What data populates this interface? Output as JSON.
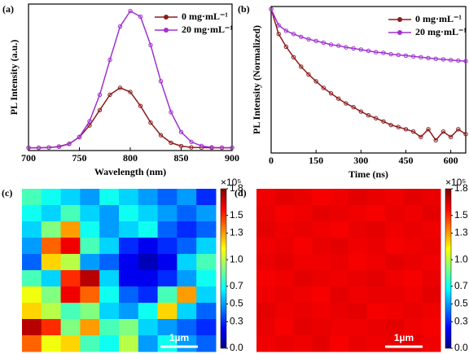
{
  "chart_data": [
    {
      "type": "line",
      "panel_label": "(a)",
      "x_label": "Wavelength (nm)",
      "y_label": "PL Intensity (a.u.)",
      "x": [
        700,
        710,
        720,
        730,
        740,
        750,
        760,
        770,
        780,
        790,
        800,
        810,
        820,
        830,
        840,
        850,
        860,
        870,
        880,
        890,
        900
      ],
      "series": [
        {
          "name": "0 mg·mL⁻¹",
          "color": "#8b1c1c",
          "values": [
            0.02,
            0.02,
            0.022,
            0.029,
            0.049,
            0.096,
            0.18,
            0.29,
            0.4,
            0.45,
            0.42,
            0.32,
            0.2,
            0.11,
            0.056,
            0.032,
            0.023,
            0.021,
            0.02,
            0.02,
            0.02
          ]
        },
        {
          "name": "20 mg·mL⁻¹",
          "color": "#a030d0",
          "values": [
            0.02,
            0.02,
            0.022,
            0.027,
            0.047,
            0.098,
            0.21,
            0.4,
            0.65,
            0.89,
            1.0,
            0.96,
            0.756,
            0.497,
            0.275,
            0.133,
            0.062,
            0.033,
            0.023,
            0.021,
            0.02
          ]
        }
      ],
      "xlim": [
        700,
        900
      ],
      "xticks": [
        700,
        750,
        800,
        850,
        900
      ],
      "ylim": [
        0,
        1.05
      ],
      "legend": "upper-right"
    },
    {
      "type": "line",
      "panel_label": "(b)",
      "x_label": "Time (ns)",
      "y_label": "PL Intensity (Normalized)",
      "log_y": true,
      "x": [
        0,
        25,
        50,
        75,
        100,
        125,
        150,
        175,
        200,
        225,
        250,
        275,
        300,
        325,
        350,
        375,
        400,
        425,
        450,
        475,
        500,
        525,
        550,
        575,
        600,
        625,
        650
      ],
      "series": [
        {
          "name": "0 mg·mL⁻¹",
          "color": "#8b1c1c",
          "values": [
            1,
            0.4,
            0.25,
            0.17,
            0.12,
            0.09,
            0.07,
            0.055,
            0.045,
            0.037,
            0.031,
            0.027,
            0.023,
            0.02,
            0.018,
            0.016,
            0.014,
            0.013,
            0.012,
            0.011,
            0.009,
            0.012,
            0.008,
            0.011,
            0.009,
            0.012,
            0.01
          ]
        },
        {
          "name": "20 mg·mL⁻¹",
          "color": "#a030d0",
          "values": [
            1,
            0.55,
            0.45,
            0.4,
            0.36,
            0.33,
            0.31,
            0.29,
            0.27,
            0.26,
            0.245,
            0.235,
            0.225,
            0.215,
            0.205,
            0.2,
            0.19,
            0.185,
            0.18,
            0.175,
            0.17,
            0.165,
            0.16,
            0.157,
            0.153,
            0.15,
            0.147
          ]
        }
      ],
      "xlim": [
        0,
        650
      ],
      "xticks": [
        0,
        150,
        300,
        450,
        600
      ],
      "ylim": [
        0.005,
        1.1
      ],
      "legend": "upper-right"
    },
    {
      "type": "heatmap",
      "panel_label": "(c)",
      "colormap": "jet",
      "colorbar_label": "×10⁵",
      "scale_bar": "1µm",
      "zlim": [
        0,
        1.8
      ],
      "zticks": [
        {
          "value": 0,
          "label": "0.0"
        },
        0.3,
        0.5,
        0.7,
        {
          "value": 1,
          "label": "1.0"
        },
        1.3,
        1.5,
        1.8
      ],
      "z": [
        [
          0.8,
          0.7,
          0.6,
          0.5,
          0.7,
          0.6,
          0.5,
          0.4,
          0.5,
          0.3
        ],
        [
          0.7,
          0.6,
          0.8,
          0.6,
          0.5,
          0.7,
          0.6,
          0.5,
          0.4,
          0.5
        ],
        [
          0.6,
          0.9,
          1.3,
          0.7,
          0.5,
          0.6,
          0.7,
          0.4,
          0.3,
          0.4
        ],
        [
          0.5,
          1.4,
          1.6,
          0.8,
          0.6,
          0.3,
          0.2,
          0.3,
          0.4,
          0.6
        ],
        [
          0.4,
          1.2,
          1.0,
          0.5,
          0.4,
          0.2,
          0.1,
          0.2,
          0.6,
          0.8
        ],
        [
          0.8,
          0.6,
          1.5,
          1.7,
          0.6,
          0.2,
          0.2,
          0.3,
          0.5,
          0.7
        ],
        [
          1.1,
          0.9,
          1.6,
          1.4,
          0.7,
          0.4,
          0.3,
          0.8,
          1.3,
          0.6
        ],
        [
          1.2,
          1.0,
          0.8,
          0.9,
          0.6,
          0.5,
          0.7,
          1.2,
          0.6,
          0.4
        ],
        [
          1.7,
          1.5,
          0.9,
          1.3,
          0.8,
          0.9,
          0.6,
          0.5,
          0.4,
          0.3
        ],
        [
          1.4,
          1.1,
          1.2,
          0.8,
          0.7,
          1.0,
          0.5,
          0.7,
          0.5,
          0.4
        ]
      ]
    },
    {
      "type": "heatmap",
      "panel_label": "(d)",
      "colormap": "jet",
      "colorbar_label": "×10⁵",
      "scale_bar": "1µm",
      "zlim": [
        0,
        1.8
      ],
      "zticks": [
        {
          "value": 0,
          "label": "0.0"
        },
        0.3,
        0.5,
        0.7,
        {
          "value": 1,
          "label": "1.0"
        },
        1.3,
        1.5,
        1.8
      ],
      "z": [
        [
          1.6,
          1.62,
          1.61,
          1.59,
          1.6,
          1.62,
          1.61,
          1.6,
          1.62,
          1.61
        ],
        [
          1.61,
          1.59,
          1.6,
          1.62,
          1.61,
          1.6,
          1.59,
          1.61,
          1.6,
          1.62
        ],
        [
          1.62,
          1.6,
          1.61,
          1.6,
          1.59,
          1.61,
          1.62,
          1.6,
          1.61,
          1.6
        ],
        [
          1.6,
          1.61,
          1.59,
          1.61,
          1.62,
          1.6,
          1.61,
          1.59,
          1.6,
          1.61
        ],
        [
          1.61,
          1.62,
          1.6,
          1.6,
          1.61,
          1.59,
          1.6,
          1.62,
          1.61,
          1.6
        ],
        [
          1.59,
          1.6,
          1.62,
          1.61,
          1.6,
          1.61,
          1.62,
          1.6,
          1.59,
          1.61
        ],
        [
          1.6,
          1.61,
          1.6,
          1.59,
          1.62,
          1.6,
          1.61,
          1.61,
          1.6,
          1.62
        ],
        [
          1.62,
          1.6,
          1.61,
          1.6,
          1.61,
          1.62,
          1.59,
          1.6,
          1.61,
          1.6
        ],
        [
          1.61,
          1.59,
          1.62,
          1.61,
          1.6,
          1.6,
          1.61,
          1.62,
          1.6,
          1.59
        ],
        [
          1.6,
          1.61,
          1.6,
          1.62,
          1.59,
          1.61,
          1.6,
          1.61,
          1.62,
          1.6
        ]
      ]
    }
  ]
}
